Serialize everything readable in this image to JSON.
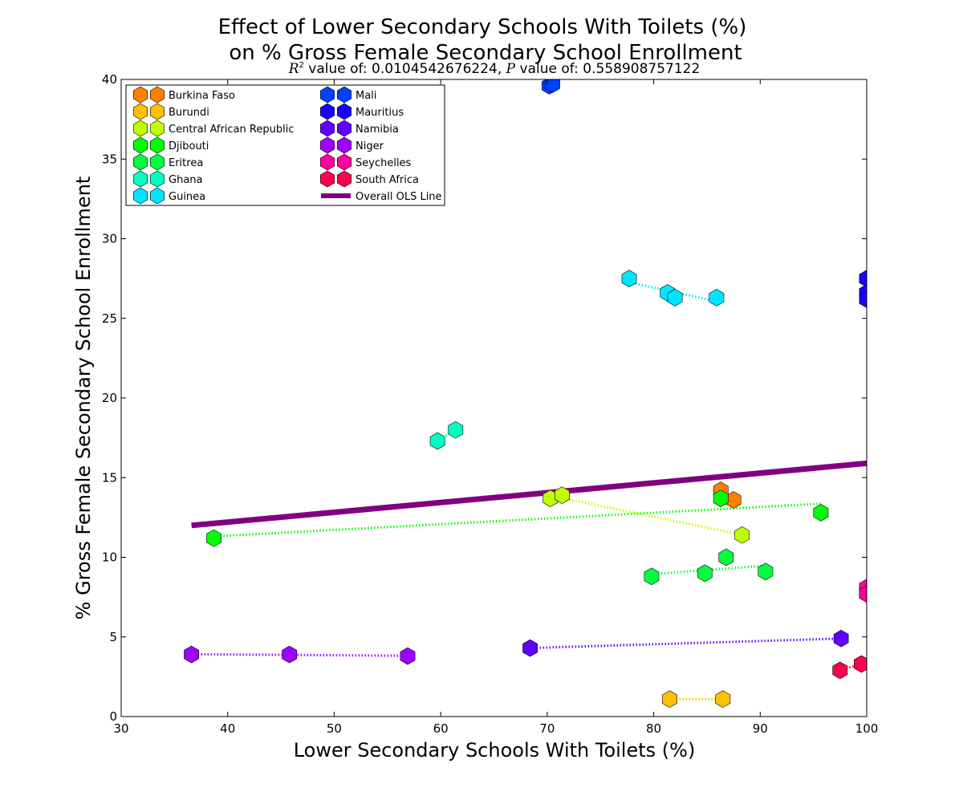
{
  "chart_data": {
    "type": "scatter",
    "title_line1": "Effect of Lower Secondary Schools With Toilets (%)",
    "title_line2": "on % Gross Female Secondary School Enrollment",
    "subtitle_r2_label": "R",
    "subtitle_r2_sup": "2",
    "subtitle_r2_text": " value of: 0.0104542676224, ",
    "subtitle_p_label": "P",
    "subtitle_p_text": " value of: 0.558908757122",
    "xlabel": "Lower Secondary Schools With Toilets (%)",
    "ylabel": "% Gross Female Secondary School Enrollment",
    "xlim": [
      30,
      100
    ],
    "ylim": [
      0,
      40
    ],
    "xticks": [
      "30",
      "40",
      "50",
      "60",
      "70",
      "80",
      "90",
      "100"
    ],
    "yticks": [
      "0",
      "5",
      "10",
      "15",
      "20",
      "25",
      "30",
      "35",
      "40"
    ],
    "legend_position": "upper-left",
    "series": [
      {
        "name": "Burkina Faso",
        "color": "#ff8000",
        "points": [
          [
            86.3,
            14.2
          ],
          [
            87.5,
            13.6
          ]
        ]
      },
      {
        "name": "Burundi",
        "color": "#ffc000",
        "points": [
          [
            81.5,
            1.1
          ],
          [
            86.5,
            1.1
          ]
        ]
      },
      {
        "name": "Central African Republic",
        "color": "#c0ff00",
        "points": [
          [
            70.3,
            13.7
          ],
          [
            71.4,
            13.9
          ],
          [
            88.3,
            11.4
          ]
        ]
      },
      {
        "name": "Djibouti",
        "color": "#00ff00",
        "points": [
          [
            38.7,
            11.2
          ],
          [
            86.3,
            13.7
          ],
          [
            95.7,
            12.8
          ]
        ]
      },
      {
        "name": "Eritrea",
        "color": "#00ff40",
        "points": [
          [
            79.8,
            8.8
          ],
          [
            84.8,
            9.0
          ],
          [
            86.8,
            10.0
          ],
          [
            90.5,
            9.1
          ]
        ]
      },
      {
        "name": "Ghana",
        "color": "#00ffc0",
        "points": [
          [
            59.7,
            17.3
          ],
          [
            61.4,
            18.0
          ]
        ]
      },
      {
        "name": "Guinea",
        "color": "#00e5ff",
        "points": [
          [
            77.7,
            27.5
          ],
          [
            81.3,
            26.6
          ],
          [
            82.0,
            26.3
          ],
          [
            85.9,
            26.3
          ]
        ]
      },
      {
        "name": "Mali",
        "color": "#0040ff",
        "points": [
          [
            70.2,
            39.6
          ],
          [
            70.5,
            39.7
          ]
        ]
      },
      {
        "name": "Mauritius",
        "color": "#1a00ff",
        "points": [
          [
            100.0,
            27.5
          ],
          [
            100.0,
            26.6
          ],
          [
            100.0,
            26.2
          ]
        ]
      },
      {
        "name": "Namibia",
        "color": "#6000ff",
        "points": [
          [
            68.4,
            4.3
          ],
          [
            97.6,
            4.9
          ]
        ]
      },
      {
        "name": "Niger",
        "color": "#a000ff",
        "points": [
          [
            36.6,
            3.9
          ],
          [
            45.8,
            3.9
          ],
          [
            56.9,
            3.8
          ]
        ]
      },
      {
        "name": "Seychelles",
        "color": "#ff00a0",
        "points": [
          [
            100.0,
            8.1
          ],
          [
            100.0,
            7.7
          ]
        ]
      },
      {
        "name": "South Africa",
        "color": "#ff0050",
        "points": [
          [
            97.5,
            2.9
          ],
          [
            99.5,
            3.3
          ]
        ]
      }
    ],
    "ols_line": {
      "name": "Overall OLS Line",
      "color": "#800080",
      "x": [
        36.6,
        100.0
      ],
      "y": [
        12.0,
        15.9
      ]
    }
  }
}
